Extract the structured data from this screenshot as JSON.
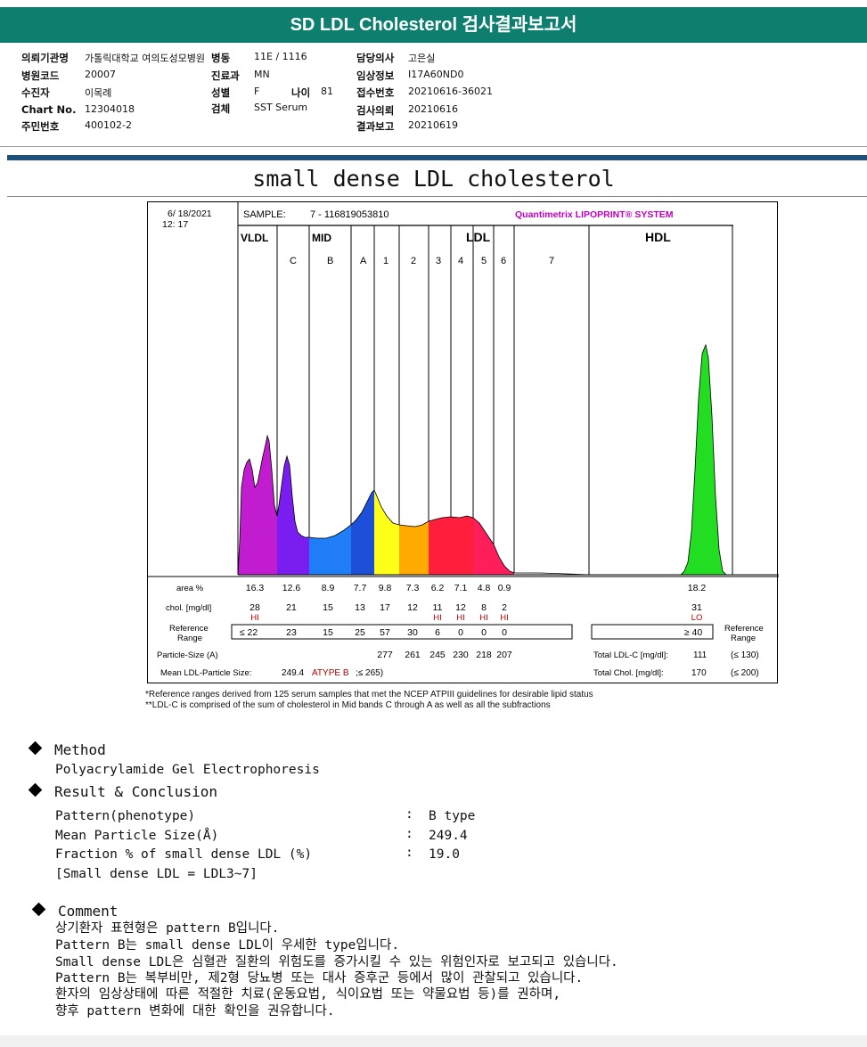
{
  "header": {
    "title": "SD LDL Cholesterol 검사결과보고서"
  },
  "info": {
    "institution_label": "의뢰기관명",
    "institution_value": "가톨릭대학교 여의도성모병원",
    "ward_label": "병동",
    "ward_value": "11E / 1116",
    "doctor_label": "담당의사",
    "doctor_value": "고은실",
    "hospital_code_label": "병원코드",
    "hospital_code_value": "20007",
    "dept_label": "진료과",
    "dept_value": "MN",
    "clinical_label": "임상정보",
    "clinical_value": "I17A60ND0",
    "patient_label": "수진자",
    "patient_value": "이목례",
    "sex_label": "성별",
    "sex_value": "F",
    "age_label": "나이",
    "age_value": "81",
    "receipt_label": "접수번호",
    "receipt_value": "20210616-36021",
    "chart_label": "Chart No.",
    "chart_value": "12304018",
    "specimen_label": "검체",
    "specimen_value": "SST Serum",
    "request_label": "검사의뢰",
    "request_value": "20210616",
    "id_label": "주민번호",
    "id_value": "400102-2",
    "report_label": "결과보고",
    "report_value": "20210619"
  },
  "report_title": "small dense LDL cholesterol",
  "chart_data": {
    "type": "area",
    "date": "6/ 18/2021",
    "time": "12: 17",
    "sample_label": "SAMPLE:",
    "sample_value": "7 - 116819053810",
    "brand": "Quantimetrix LIPOPRINT® SYSTEM",
    "groups": [
      "VLDL",
      "MID",
      "LDL",
      "HDL"
    ],
    "bands": [
      "C",
      "B",
      "A",
      "1",
      "2",
      "3",
      "4",
      "5",
      "6",
      "7"
    ],
    "band_colors": {
      "VLDL": "#c11ccf",
      "C": "#7a1df0",
      "B": "#1e7df7",
      "A": "#1d4fd8",
      "1": "#ffff1a",
      "2": "#ffaa00",
      "3": "#ff1e3c",
      "4": "#ff1e3c",
      "5": "#ff1e5a",
      "6": "#ff1e5a",
      "HDL": "#22dd22"
    },
    "area_label": "area %",
    "area_values": [
      "16.3",
      "12.6",
      "8.9",
      "7.7",
      "9.8",
      "7.3",
      "6.2",
      "7.1",
      "4.8",
      "0.9"
    ],
    "hdl_area": "18.2",
    "chol_label": "chol. [mg/dl]",
    "chol_values": [
      "28",
      "21",
      "15",
      "13",
      "17",
      "12",
      "11",
      "12",
      "8",
      "2"
    ],
    "chol_flags": [
      "HI",
      "",
      "",
      "",
      "",
      "",
      "HI",
      "HI",
      "HI",
      "HI"
    ],
    "hdl_chol": "31",
    "hdl_flag": "LO",
    "ref_label_1": "Reference",
    "ref_label_2": "Range",
    "ref_first": "≤ 22",
    "ref_values": [
      "23",
      "15",
      "25",
      "57",
      "30",
      "6",
      "0",
      "0",
      "0"
    ],
    "hdl_ref": "≥ 40",
    "particle_label": "Particle-Size (A)",
    "particle_values": [
      "277",
      "261",
      "245",
      "230",
      "218",
      "207"
    ],
    "total_ldl_label": "Total LDL-C [mg/dl]:",
    "total_ldl_value": "111",
    "total_ldl_ref": "(≤ 130)",
    "mean_label": "Mean LDL-Particle Size:",
    "mean_value": "249.4",
    "mean_type": "ATYPE B",
    "mean_ref": ";≤ 265)",
    "total_chol_label": "Total Chol. [mg/dl]:",
    "total_chol_value": "170",
    "total_chol_ref": "(≤ 200)"
  },
  "footnotes": [
    "*Reference ranges derived from 125 serum samples that met the NCEP ATPIII guidelines for desirable lipid status",
    "**LDL-C is comprised of the sum of cholesterol in Mid bands C through A as well as all the subfractions"
  ],
  "method": {
    "heading": "Method",
    "text": "Polyacrylamide Gel Electrophoresis"
  },
  "result": {
    "heading": "Result & Conclusion",
    "rows": [
      {
        "label": "Pattern(phenotype)",
        "value": "B type"
      },
      {
        "label": "Mean Particle Size(Å)",
        "value": "249.4"
      },
      {
        "label": "Fraction % of small dense LDL (%)",
        "value": "19.0"
      }
    ],
    "note": "[Small dense LDL = LDL3~7]",
    "colon": ":"
  },
  "comment": {
    "heading": "Comment",
    "lines": [
      "상기환자 표현형은 pattern B입니다.",
      "Pattern B는 small dense LDL이 우세한 type입니다.",
      "Small dense LDL은 심혈관 질환의 위험도를 증가시킬 수 있는 위험인자로 보고되고 있습니다.",
      "Pattern B는 복부비만, 제2형 당뇨병 또는 대사 증후군 등에서 많이 관찰되고 있습니다.",
      "환자의 임상상태에 따른 적절한 치료(운동요법, 식이요법 또는 약물요법 등)를 권하며,",
      "향후 pattern 변화에 대한 확인을 권유합니다."
    ]
  }
}
